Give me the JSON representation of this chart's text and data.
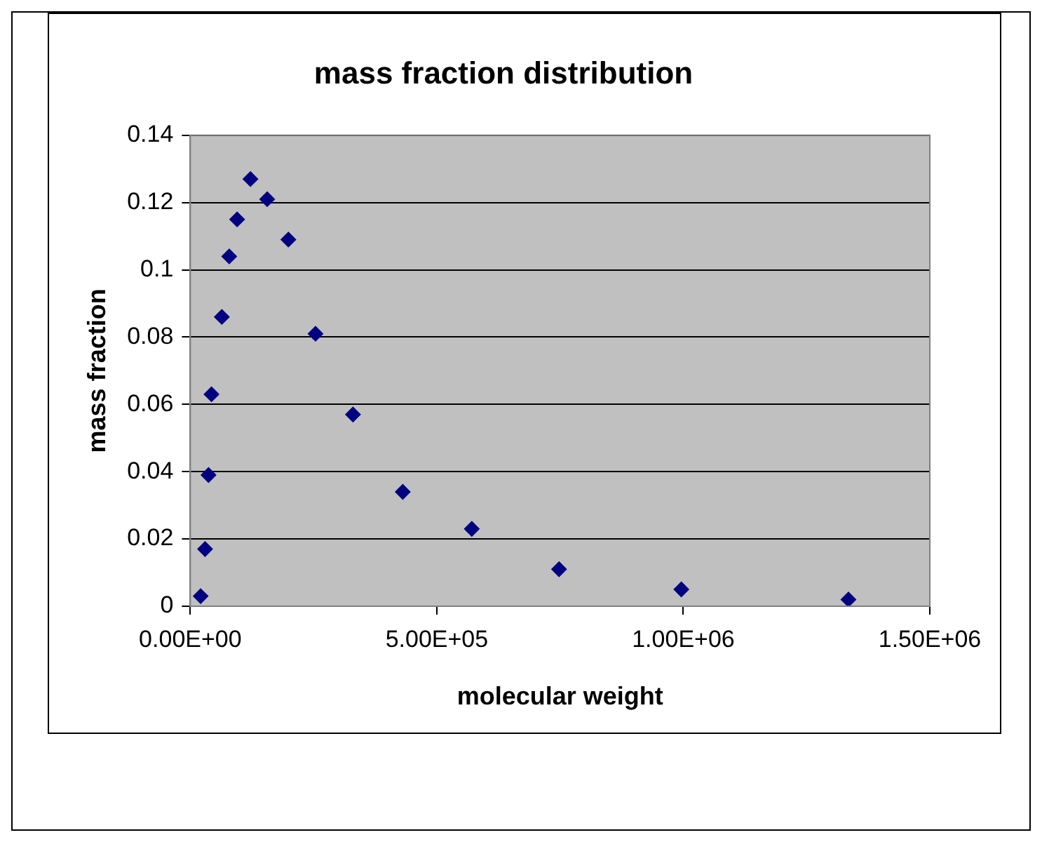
{
  "chart_data": {
    "type": "scatter",
    "title": "mass fraction distribution",
    "xlabel": "molecular weight",
    "ylabel": "mass fraction",
    "x": [
      21000,
      30000,
      37000,
      43000,
      64000,
      79000,
      95000,
      122000,
      156000,
      199000,
      254000,
      330000,
      431000,
      571000,
      748000,
      996000,
      1335000
    ],
    "series": [
      {
        "color": "#000080",
        "values": [
          0.003,
          0.017,
          0.039,
          0.063,
          0.086,
          0.104,
          0.115,
          0.127,
          0.121,
          0.109,
          0.081,
          0.057,
          0.034,
          0.023,
          0.011,
          0.005,
          0.002
        ]
      }
    ],
    "xlim": [
      0,
      1500000
    ],
    "xticks": [
      {
        "value": 0,
        "label": "0.00E+00"
      },
      {
        "value": 500000,
        "label": "5.00E+05"
      },
      {
        "value": 1000000,
        "label": "1.00E+06"
      },
      {
        "value": 1500000,
        "label": "1.50E+06"
      }
    ],
    "ylim": [
      0,
      0.14
    ],
    "yticks": [
      0,
      0.02,
      0.04,
      0.06,
      0.08,
      0.1,
      0.12,
      0.14
    ],
    "grid": "y",
    "legend": false,
    "marker": "diamond"
  }
}
